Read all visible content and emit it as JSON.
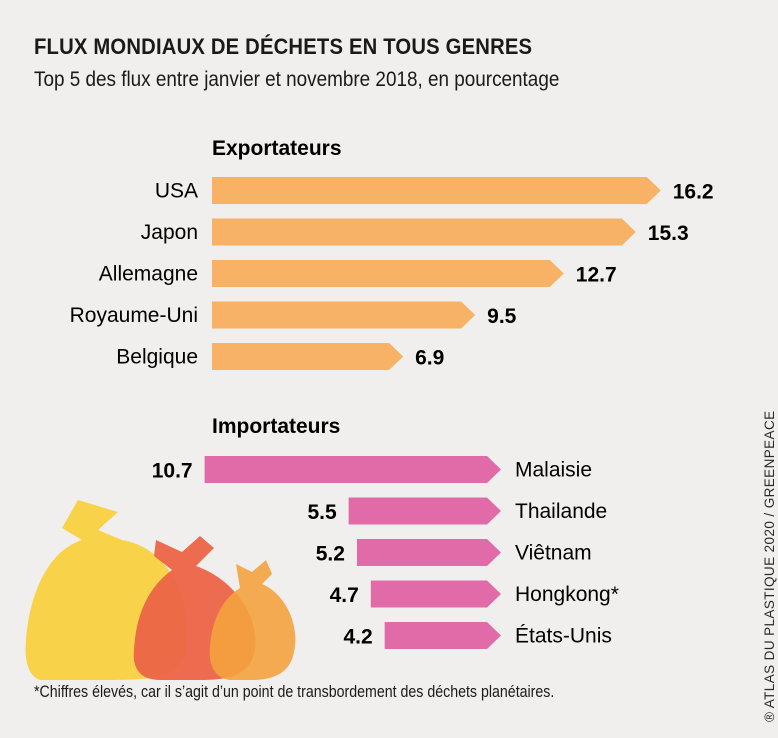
{
  "title": "FLUX MONDIAUX DE DÉCHETS EN TOUS GENRES",
  "subtitle": "Top 5 des flux entre janvier et novembre 2018, en pourcentage",
  "footnote": "*Chiffres élevés, car il s’agit d’un point de transbordement des déchets planétaires.",
  "credit": "® ATLAS DU PLASTIQUE 2020 / GREENPEACE",
  "colors": {
    "exporters": "#f8b266",
    "importers": "#e06ba8",
    "bag_yellow": "#f8d34a",
    "bag_red": "#ec6447",
    "bag_orange": "#f4a23e"
  },
  "chart_data": [
    {
      "type": "bar",
      "title": "Exportateurs",
      "categories": [
        "USA",
        "Japon",
        "Allemagne",
        "Royaume-Uni",
        "Belgique"
      ],
      "values": [
        16.2,
        15.3,
        12.7,
        9.5,
        6.9
      ],
      "value_labels": [
        "16.2",
        "15.3",
        "12.7",
        "9.5",
        "6.9"
      ],
      "orientation": "horizontal",
      "direction": "left-to-right",
      "color": "#f8b266"
    },
    {
      "type": "bar",
      "title": "Importateurs",
      "categories": [
        "Malaisie",
        "Thailande",
        "Viêtnam",
        "Hongkong*",
        "États-Unis"
      ],
      "values": [
        10.7,
        5.5,
        5.2,
        4.7,
        4.2
      ],
      "value_labels": [
        "10.7",
        "5.5",
        "5.2",
        "4.7",
        "4.2"
      ],
      "orientation": "horizontal",
      "direction": "right-to-left",
      "color": "#e06ba8"
    }
  ]
}
